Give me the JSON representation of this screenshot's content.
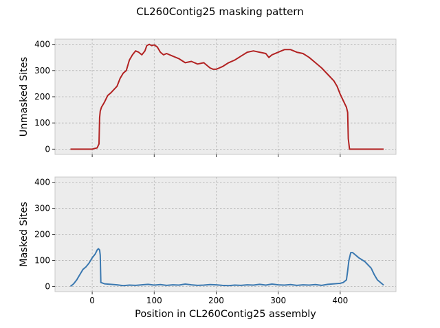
{
  "chart_data": {
    "title": "CL260Contig25 masking pattern",
    "xlabel": "Position in CL260Contig25 assembly",
    "xlim": [
      -60,
      490
    ],
    "xticks": [
      0,
      100,
      200,
      300,
      400
    ],
    "grid": true,
    "panels": [
      {
        "type": "line",
        "ylabel": "Unmasked Sites",
        "ylim": [
          -20,
          420
        ],
        "yticks": [
          0,
          100,
          200,
          300,
          400
        ],
        "series": [
          {
            "color": "#b22222",
            "x": [
              -35,
              -20,
              0,
              8,
              11,
              12,
              13,
              15,
              20,
              25,
              30,
              40,
              45,
              50,
              55,
              60,
              65,
              70,
              75,
              80,
              85,
              88,
              92,
              96,
              100,
              105,
              110,
              115,
              120,
              130,
              140,
              150,
              160,
              170,
              180,
              190,
              195,
              200,
              205,
              210,
              220,
              230,
              240,
              250,
              260,
              270,
              280,
              285,
              290,
              300,
              310,
              320,
              330,
              340,
              350,
              360,
              370,
              380,
              390,
              395,
              400,
              405,
              410,
              412,
              413,
              415,
              420,
              440,
              470
            ],
            "values": [
              0,
              0,
              0,
              5,
              20,
              120,
              145,
              160,
              180,
              205,
              215,
              240,
              270,
              290,
              300,
              340,
              360,
              375,
              370,
              360,
              375,
              395,
              400,
              395,
              398,
              390,
              370,
              360,
              365,
              355,
              345,
              330,
              335,
              325,
              330,
              310,
              305,
              305,
              310,
              315,
              330,
              340,
              355,
              370,
              375,
              370,
              365,
              350,
              360,
              370,
              380,
              380,
              370,
              365,
              350,
              330,
              310,
              285,
              260,
              240,
              210,
              185,
              160,
              140,
              40,
              0,
              0,
              0,
              0
            ]
          }
        ]
      },
      {
        "type": "line",
        "ylabel": "Masked Sites",
        "ylim": [
          -20,
          420
        ],
        "yticks": [
          0,
          100,
          200,
          300,
          400
        ],
        "series": [
          {
            "color": "#3a78b0",
            "x": [
              -35,
              -30,
              -25,
              -20,
              -15,
              -10,
              -5,
              0,
              5,
              8,
              10,
              12,
              13,
              14,
              20,
              30,
              40,
              50,
              60,
              70,
              80,
              90,
              100,
              110,
              120,
              130,
              140,
              150,
              160,
              170,
              180,
              190,
              200,
              210,
              220,
              230,
              240,
              250,
              260,
              270,
              280,
              290,
              300,
              310,
              320,
              330,
              340,
              350,
              360,
              370,
              380,
              390,
              400,
              405,
              410,
              412,
              414,
              417,
              420,
              425,
              430,
              440,
              450,
              455,
              460,
              470
            ],
            "values": [
              0,
              10,
              25,
              45,
              65,
              75,
              90,
              110,
              125,
              140,
              145,
              140,
              120,
              15,
              10,
              8,
              6,
              3,
              5,
              4,
              6,
              8,
              5,
              7,
              4,
              6,
              5,
              9,
              6,
              4,
              5,
              7,
              6,
              4,
              3,
              5,
              4,
              6,
              5,
              8,
              5,
              9,
              6,
              5,
              7,
              4,
              6,
              5,
              7,
              4,
              8,
              10,
              12,
              15,
              25,
              60,
              100,
              130,
              130,
              120,
              110,
              95,
              70,
              45,
              25,
              5
            ]
          }
        ]
      }
    ]
  }
}
